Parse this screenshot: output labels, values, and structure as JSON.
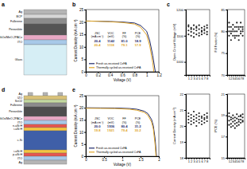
{
  "panel_labels": [
    "a",
    "b",
    "c",
    "d",
    "e"
  ],
  "diagrams": [
    {
      "layers": [
        {
          "label": "Ag",
          "color": "#b5b5b5"
        },
        {
          "label": "BCP",
          "color": "#d6d6d6"
        },
        {
          "label": "Fullerene",
          "color": "#8c8c8c"
        },
        {
          "label": "Perovskite",
          "color": "#555555"
        },
        {
          "label": "NiOx/MeO-2PACz",
          "color": "#e7a8c4"
        },
        {
          "label": "ITO",
          "color": "#a8c8e8"
        },
        {
          "label": "Glass",
          "color": "#d6eef5"
        }
      ]
    },
    {
      "layers": [
        {
          "label": "Ag",
          "color": "#b5b5b5"
        },
        {
          "label": "IZO",
          "color": "#d9c27a"
        },
        {
          "label": "SnO2",
          "color": "#c4d9a0"
        },
        {
          "label": "Fullerene",
          "color": "#8c8c8c"
        },
        {
          "label": "Perovskite",
          "color": "#4d4d4d"
        },
        {
          "label": "NiOx/MeO-2PACz",
          "color": "#e7a8c4"
        },
        {
          "label": "ITO",
          "color": "#a8c8e8"
        },
        {
          "label": "n-aSi:H",
          "color": "#e6564f"
        },
        {
          "label": "i-aSi:H",
          "color": "#f4c542"
        },
        {
          "label": "c-Si",
          "color": "#3f5fa8"
        },
        {
          "label": "i-aSi:H",
          "color": "#f4c542"
        },
        {
          "label": "p-aSi:H",
          "color": "#e6564f"
        },
        {
          "label": "ITO",
          "color": "#a8c8e8"
        },
        {
          "label": "Ag",
          "color": "#b5b5b5"
        }
      ]
    }
  ],
  "chart_data": [
    {
      "type": "line",
      "x_label": "Voltage (V)",
      "y_label": "Current Density (mA cm⁻²)",
      "xlim": [
        0,
        1.2
      ],
      "xticks": [
        0,
        0.2,
        0.4,
        0.6,
        0.8,
        1,
        1.2
      ],
      "ylim": [
        0,
        25
      ],
      "yticks": [
        0,
        5,
        10,
        15,
        20,
        25
      ],
      "legend": "lower left",
      "series": [
        {
          "name": "Fresh as-received CsFA",
          "color": "#1f2a6b",
          "x": [
            0,
            0.2,
            0.4,
            0.6,
            0.8,
            0.9,
            1.0,
            1.05,
            1.1,
            1.142
          ],
          "values": [
            20.4,
            20.3,
            20.2,
            20.0,
            19.6,
            18.6,
            16.3,
            12.5,
            6.5,
            0
          ]
        },
        {
          "name": "Thermally cycled as-received CsFA",
          "color": "#e0a526",
          "x": [
            0,
            0.2,
            0.4,
            0.6,
            0.8,
            0.9,
            1.0,
            1.05,
            1.1,
            1.118
          ],
          "values": [
            20.4,
            20.3,
            20.1,
            19.8,
            19.2,
            17.9,
            14.8,
            10.5,
            3.6,
            0
          ]
        }
      ],
      "table": {
        "columns": [
          [
            "JSC",
            "(mA cm⁻²)"
          ],
          [
            "VOC",
            "(mV)"
          ],
          [
            "FF",
            "(%)"
          ],
          [
            "PCE",
            "(%)"
          ]
        ],
        "rows": [
          [
            "20.4",
            "1142",
            "81.0",
            "18.9"
          ],
          [
            "20.4",
            "1118",
            "79.1",
            "17.9"
          ]
        ]
      }
    },
    {
      "type": "line",
      "x_label": "Voltage (V)",
      "y_label": "Current Density (mA cm⁻²)",
      "xlim": [
        0,
        2
      ],
      "xticks": [
        0,
        0.5,
        1,
        1.5,
        2
      ],
      "ylim": [
        0,
        25
      ],
      "yticks": [
        0,
        5,
        10,
        15,
        20,
        25
      ],
      "legend": "lower left",
      "series": [
        {
          "name": "Fresh as-received CsFA",
          "color": "#1f2a6b",
          "x": [
            0,
            0.4,
            0.8,
            1.2,
            1.4,
            1.6,
            1.7,
            1.8,
            1.85,
            1.9,
            1.936
          ],
          "values": [
            20.0,
            19.95,
            19.9,
            19.7,
            19.4,
            18.6,
            17.6,
            15.2,
            12.5,
            7.0,
            0
          ]
        },
        {
          "name": "Thermally cycled as-received CsFA",
          "color": "#e0a526",
          "x": [
            0,
            0.4,
            0.8,
            1.2,
            1.4,
            1.6,
            1.7,
            1.8,
            1.85,
            1.9,
            1.921
          ],
          "values": [
            19.8,
            19.75,
            19.7,
            19.4,
            19.0,
            18.1,
            16.9,
            14.2,
            11.2,
            4.5,
            0
          ]
        }
      ],
      "table": {
        "columns": [
          [
            "JSC",
            "(mA cm⁻²)"
          ],
          [
            "VOC",
            "(mV)"
          ],
          [
            "FF",
            "(%)"
          ],
          [
            "PCE",
            "(%)"
          ]
        ],
        "rows": [
          [
            "20.0",
            "1936",
            "80.4",
            "31.2"
          ],
          [
            "19.8",
            "1921",
            "79.4",
            "30.2"
          ]
        ]
      }
    },
    {
      "type": "scatter",
      "y_label": "Open Circuit Voltage (mV)",
      "xlim": [
        0,
        9
      ],
      "xticks": [
        1,
        2,
        3,
        4,
        5,
        6,
        7,
        8
      ],
      "ylim": [
        950,
        1200
      ],
      "yticks": [
        1000,
        1100,
        1200
      ],
      "series": [
        {
          "color": "#222222",
          "x": [
            1,
            1,
            1,
            1,
            2,
            2,
            2,
            2,
            3,
            3,
            3,
            3,
            4,
            4,
            4,
            4,
            5,
            5,
            5,
            5,
            6,
            6,
            6,
            6,
            7,
            7,
            7,
            7,
            8,
            8,
            8,
            8
          ],
          "values": [
            1135,
            1120,
            1105,
            1140,
            1130,
            1115,
            1100,
            1125,
            1140,
            1125,
            1110,
            1095,
            1135,
            1120,
            1105,
            1130,
            1125,
            1110,
            1140,
            1100,
            1130,
            1115,
            1105,
            1120,
            1135,
            1120,
            1110,
            1125,
            1130,
            1140,
            1115,
            1105
          ]
        }
      ]
    },
    {
      "type": "scatter",
      "y_label": "Fill Factor (%)",
      "xlim": [
        0,
        9
      ],
      "xticks": [
        1,
        2,
        3,
        4,
        5,
        6,
        7,
        8
      ],
      "ylim": [
        70,
        85
      ],
      "yticks": [
        70,
        75,
        80,
        85
      ],
      "series": [
        {
          "color": "#222222",
          "x": [
            1,
            1,
            1,
            1,
            2,
            2,
            2,
            2,
            3,
            3,
            3,
            3,
            4,
            4,
            4,
            4,
            5,
            5,
            5,
            5,
            6,
            6,
            6,
            6,
            7,
            7,
            7,
            7,
            8,
            8,
            8,
            8
          ],
          "values": [
            81,
            80,
            79,
            82,
            80,
            79.5,
            81,
            78,
            81.5,
            80,
            79,
            80.5,
            80,
            81,
            79,
            78.5,
            81,
            80,
            82,
            79,
            79,
            80.5,
            81,
            78,
            80,
            81,
            79.5,
            82,
            81,
            80,
            79,
            80.5
          ]
        }
      ]
    },
    {
      "type": "scatter",
      "y_label": "Current Density (mA cm⁻²)",
      "xlim": [
        0,
        9
      ],
      "xticks": [
        1,
        2,
        3,
        4,
        5,
        6,
        7,
        8
      ],
      "ylim": [
        18,
        22
      ],
      "yticks": [
        18,
        19,
        20,
        21,
        22
      ],
      "series": [
        {
          "color": "#222222",
          "x": [
            1,
            1,
            1,
            1,
            2,
            2,
            2,
            2,
            3,
            3,
            3,
            3,
            4,
            4,
            4,
            4,
            5,
            5,
            5,
            5,
            6,
            6,
            6,
            6,
            7,
            7,
            7,
            7,
            8,
            8,
            8,
            8
          ],
          "values": [
            20.4,
            20.6,
            20.2,
            20.8,
            20.5,
            20.3,
            20.7,
            20.1,
            20.6,
            20.4,
            20.2,
            20.9,
            20.3,
            20.5,
            20.7,
            20.0,
            20.4,
            20.6,
            20.8,
            20.2,
            20.5,
            20.3,
            20.1,
            20.6,
            20.4,
            20.7,
            20.2,
            20.5,
            20.6,
            20.3,
            20.5,
            20.8
          ]
        }
      ]
    },
    {
      "type": "scatter",
      "y_label": "PCE (%)",
      "xlim": [
        0,
        9
      ],
      "xticks": [
        1,
        2,
        3,
        4,
        5,
        6,
        7,
        8
      ],
      "ylim": [
        15,
        21
      ],
      "yticks": [
        15,
        17,
        19,
        21
      ],
      "series": [
        {
          "color": "#222222",
          "x": [
            1,
            1,
            1,
            1,
            2,
            2,
            2,
            2,
            3,
            3,
            3,
            3,
            4,
            4,
            4,
            4,
            5,
            5,
            5,
            5,
            6,
            6,
            6,
            6,
            7,
            7,
            7,
            7,
            8,
            8,
            8,
            8
          ],
          "values": [
            18.9,
            18.5,
            18.1,
            19.2,
            18.6,
            18.2,
            18.8,
            17.9,
            19.0,
            18.4,
            18.0,
            18.7,
            18.5,
            18.8,
            18.2,
            17.8,
            18.7,
            18.3,
            19.1,
            18.0,
            18.4,
            18.6,
            18.1,
            18.9,
            18.6,
            18.9,
            18.3,
            19.0,
            18.8,
            18.4,
            18.5,
            19.1
          ]
        }
      ]
    }
  ]
}
